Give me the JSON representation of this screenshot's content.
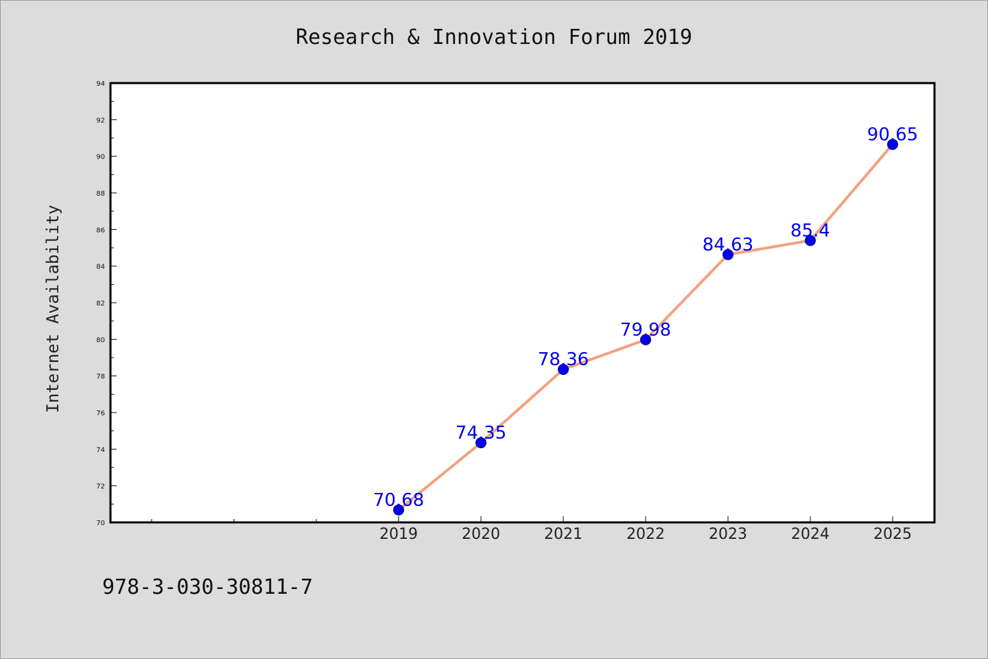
{
  "chart_data": {
    "type": "line",
    "title": "Research & Innovation Forum 2019",
    "xlabel": "",
    "ylabel": "Internet Availability",
    "categories": [
      "2019",
      "2020",
      "2021",
      "2022",
      "2023",
      "2024",
      "2025"
    ],
    "series": [
      {
        "values": [
          70.68,
          74.35,
          78.36,
          79.98,
          84.63,
          85.4,
          90.65
        ],
        "labels": [
          "70.68",
          "74.35",
          "78.36",
          "79.98",
          "84.63",
          "85.4",
          "90.65"
        ],
        "line_color": "#f4a07f",
        "marker_color": "#0000ee"
      }
    ],
    "ylim": [
      70,
      94
    ],
    "yticks": [
      70,
      72,
      74,
      76,
      78,
      80,
      82,
      84,
      86,
      88,
      90,
      92,
      94
    ],
    "ytick_labels": [
      "70",
      "72",
      "74",
      "76",
      "78",
      "80",
      "82",
      "84",
      "86",
      "88",
      "90",
      "92",
      "94"
    ],
    "grid": false,
    "legend": "none"
  },
  "footer": {
    "isbn": "978-3-030-30811-7"
  },
  "colors": {
    "background": "#dcdcdc",
    "plot_area": "#ffffff",
    "frame": "#000000"
  }
}
